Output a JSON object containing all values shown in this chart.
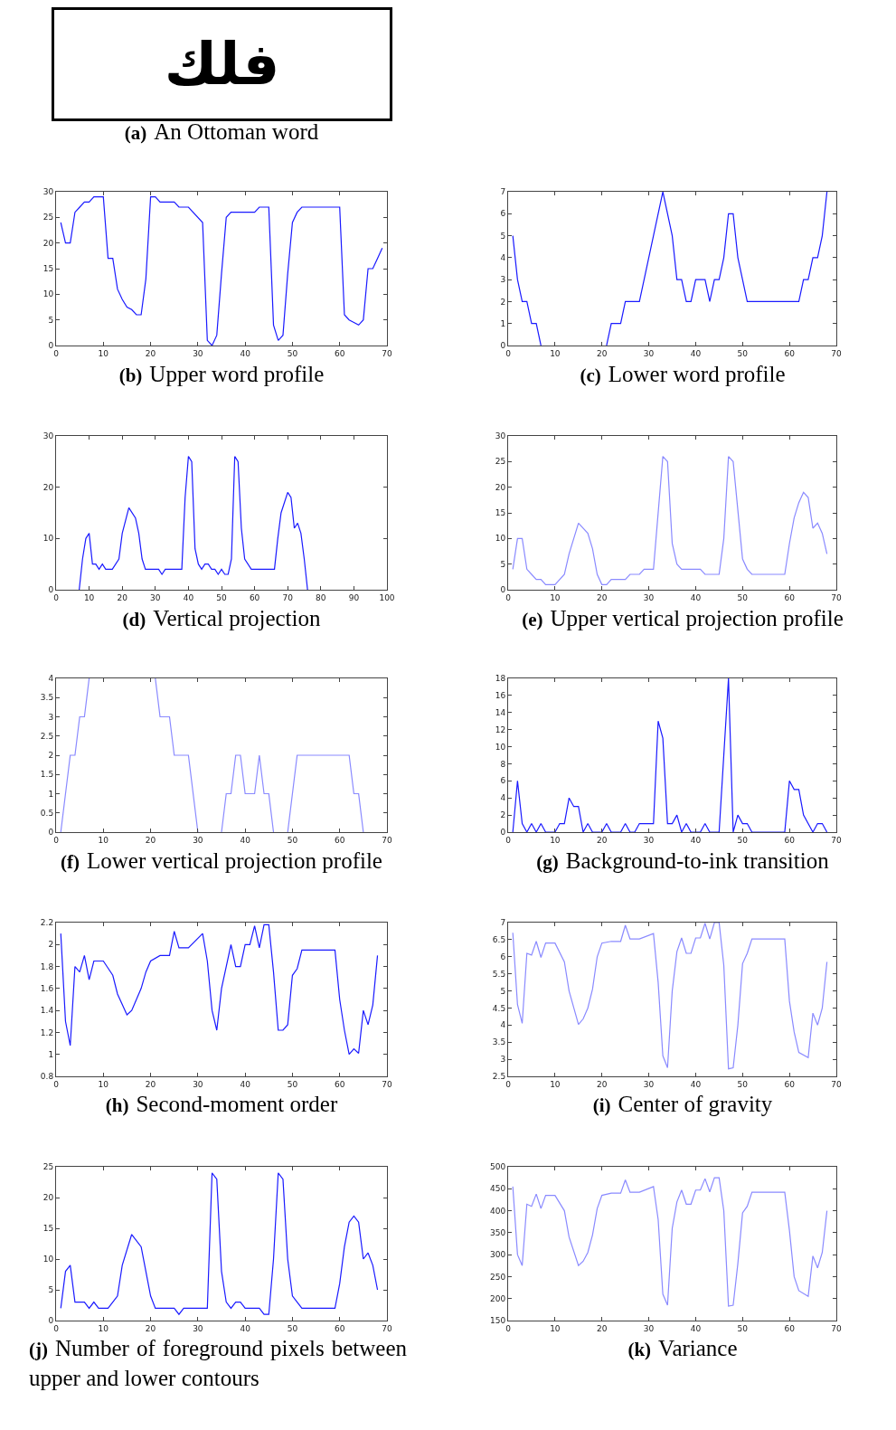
{
  "chart_data": [
    {
      "type": "other",
      "title": "(a) An Ottoman word",
      "annotations": [
        "فلك"
      ]
    },
    {
      "type": "line",
      "title": "(b) Upper word profile",
      "xlim": [
        0,
        70
      ],
      "xticks": [
        0,
        10,
        20,
        30,
        40,
        50,
        60,
        70
      ],
      "ylim": [
        0,
        30
      ],
      "yticks": [
        0,
        5,
        10,
        15,
        20,
        25,
        30
      ],
      "series": [
        {
          "color": "#1a1aff",
          "x": [
            1,
            2,
            3,
            4,
            5,
            6,
            7,
            8,
            10,
            11,
            12,
            13,
            14,
            15,
            16,
            17,
            18,
            19,
            20,
            21,
            22,
            25,
            26,
            28,
            31,
            32,
            33,
            34,
            35,
            36,
            37,
            42,
            43,
            45,
            46,
            47,
            48,
            49,
            50,
            51,
            52,
            60,
            61,
            62,
            63,
            64,
            65,
            66,
            67,
            68,
            69
          ],
          "values": [
            24,
            20,
            20,
            26,
            27,
            28,
            28,
            29,
            29,
            17,
            17,
            11,
            9,
            7.5,
            7,
            6,
            6,
            13,
            29,
            29,
            28,
            28,
            27,
            27,
            24,
            1,
            0,
            2,
            14,
            25,
            26,
            26,
            27,
            27,
            4,
            1,
            2,
            14,
            24,
            26,
            27,
            27,
            6,
            5,
            4.5,
            4,
            5,
            15,
            15,
            17,
            19
          ]
        }
      ]
    },
    {
      "type": "line",
      "title": "(c) Lower word profile",
      "xlim": [
        0,
        70
      ],
      "xticks": [
        0,
        10,
        20,
        30,
        40,
        50,
        60,
        70
      ],
      "ylim": [
        0,
        7
      ],
      "yticks": [
        0,
        1,
        2,
        3,
        4,
        5,
        6,
        7
      ],
      "series": [
        {
          "color": "#1a1aff",
          "x": [
            1,
            2,
            3,
            4,
            5,
            6,
            7,
            14,
            21,
            22,
            24,
            25,
            28,
            33,
            35,
            36,
            37,
            38,
            39,
            40,
            42,
            43,
            44,
            45,
            46,
            47,
            48,
            49,
            51,
            62,
            63,
            64,
            65,
            66,
            67,
            68
          ],
          "values": [
            5,
            3,
            2,
            2,
            1,
            1,
            0,
            null,
            0,
            1,
            1,
            2,
            2,
            7,
            5,
            3,
            3,
            2,
            2,
            3,
            3,
            2,
            3,
            3,
            4,
            6,
            6,
            4,
            2,
            2,
            3,
            3,
            4,
            4,
            5,
            7
          ]
        }
      ]
    },
    {
      "type": "line",
      "title": "(d) Vertical projection",
      "xlim": [
        0,
        100
      ],
      "xticks": [
        0,
        10,
        20,
        30,
        40,
        50,
        60,
        70,
        80,
        90,
        100
      ],
      "ylim": [
        0,
        30
      ],
      "yticks": [
        0,
        10,
        20,
        30
      ],
      "series": [
        {
          "color": "#1a1aff",
          "x": [
            7,
            8,
            9,
            10,
            11,
            12,
            13,
            14,
            15,
            17,
            19,
            20,
            22,
            24,
            25,
            26,
            27,
            31,
            32,
            33,
            38,
            39,
            40,
            41,
            42,
            43,
            44,
            45,
            46,
            47,
            48,
            49,
            50,
            51,
            52,
            53,
            54,
            55,
            56,
            57,
            59,
            66,
            67,
            68,
            70,
            71,
            72,
            73,
            74,
            75,
            76
          ],
          "values": [
            0,
            6,
            10,
            11,
            5,
            5,
            4,
            5,
            4,
            4,
            6,
            11,
            16,
            14,
            11,
            6,
            4,
            4,
            3,
            4,
            4,
            18,
            26,
            25,
            8,
            5,
            4,
            5,
            5,
            4,
            4,
            3,
            4,
            3,
            3,
            6,
            26,
            25,
            12,
            6,
            4,
            4,
            10,
            15,
            19,
            18,
            12,
            13,
            11,
            6,
            0
          ]
        }
      ]
    },
    {
      "type": "line",
      "title": "(e) Upper vertical projection profile",
      "xlim": [
        0,
        70
      ],
      "xticks": [
        0,
        10,
        20,
        30,
        40,
        50,
        60,
        70
      ],
      "ylim": [
        0,
        30
      ],
      "yticks": [
        0,
        5,
        10,
        15,
        20,
        25,
        30
      ],
      "series": [
        {
          "color": "#8a8aff",
          "x": [
            1,
            2,
            3,
            4,
            5,
            6,
            7,
            8,
            10,
            12,
            13,
            15,
            17,
            18,
            19,
            20,
            21,
            22,
            25,
            26,
            28,
            29,
            31,
            33,
            34,
            35,
            36,
            37,
            41,
            42,
            45,
            46,
            47,
            48,
            50,
            51,
            52,
            59,
            60,
            61,
            62,
            63,
            64,
            65,
            66,
            67,
            68
          ],
          "values": [
            4,
            10,
            10,
            4,
            3,
            2,
            2,
            1,
            1,
            3,
            7,
            13,
            11,
            8,
            3,
            1,
            1,
            2,
            2,
            3,
            3,
            4,
            4,
            26,
            25,
            9,
            5,
            4,
            4,
            3,
            3,
            10,
            26,
            25,
            6,
            4,
            3,
            3,
            9,
            14,
            17,
            19,
            18,
            12,
            13,
            11,
            7
          ]
        }
      ]
    },
    {
      "type": "line",
      "title": "(f) Lower vertical projection profile",
      "xlim": [
        0,
        70
      ],
      "xticks": [
        0,
        10,
        20,
        30,
        40,
        50,
        60,
        70
      ],
      "ylim": [
        0,
        4
      ],
      "yticks": [
        0,
        0.5,
        1,
        1.5,
        2,
        2.5,
        3,
        3.5,
        4
      ],
      "series": [
        {
          "color": "#8a8aff",
          "x": [
            1,
            3,
            4,
            5,
            6,
            7,
            14,
            21,
            22,
            24,
            25,
            28,
            30,
            32,
            35,
            36,
            37,
            38,
            39,
            40,
            42,
            43,
            44,
            45,
            46,
            47,
            49,
            51,
            62,
            63,
            64,
            65
          ],
          "values": [
            0,
            2,
            2,
            3,
            3,
            4,
            null,
            4,
            3,
            3,
            2,
            2,
            0,
            null,
            0,
            1,
            1,
            2,
            2,
            1,
            1,
            2,
            1,
            1,
            0,
            null,
            0,
            2,
            2,
            1,
            1,
            0
          ]
        }
      ]
    },
    {
      "type": "line",
      "title": "(g) Background-to-ink transition",
      "xlim": [
        0,
        70
      ],
      "xticks": [
        0,
        10,
        20,
        30,
        40,
        50,
        60,
        70
      ],
      "ylim": [
        0,
        18
      ],
      "yticks": [
        0,
        2,
        4,
        6,
        8,
        10,
        12,
        14,
        16,
        18
      ],
      "series": [
        {
          "color": "#1a1aff",
          "x": [
            1,
            2,
            3,
            4,
            5,
            6,
            7,
            8,
            10,
            11,
            12,
            13,
            14,
            15,
            16,
            17,
            18,
            20,
            21,
            22,
            24,
            25,
            26,
            27,
            28,
            31,
            32,
            33,
            34,
            35,
            36,
            37,
            38,
            39,
            41,
            42,
            43,
            45,
            46,
            47,
            48,
            49,
            50,
            51,
            52,
            59,
            60,
            61,
            62,
            63,
            65,
            66,
            67,
            68
          ],
          "values": [
            0,
            6,
            1,
            0,
            1,
            0,
            1,
            0,
            0,
            1,
            1,
            4,
            3,
            3,
            0,
            1,
            0,
            0,
            1,
            0,
            0,
            1,
            0,
            0,
            1,
            1,
            13,
            11,
            1,
            1,
            2,
            0,
            1,
            0,
            0,
            1,
            0,
            0,
            9,
            18,
            0,
            2,
            1,
            1,
            0,
            0,
            6,
            5,
            5,
            2,
            0,
            1,
            1,
            0
          ]
        }
      ]
    },
    {
      "type": "line",
      "title": "(h) Second-moment order",
      "xlim": [
        0,
        70
      ],
      "xticks": [
        0,
        10,
        20,
        30,
        40,
        50,
        60,
        70
      ],
      "ylim": [
        0.8,
        2.2
      ],
      "yticks": [
        0.8,
        1,
        1.2,
        1.4,
        1.6,
        1.8,
        2,
        2.2
      ],
      "series": [
        {
          "color": "#1a1aff",
          "x": [
            1,
            2,
            3,
            4,
            5,
            6,
            7,
            8,
            10,
            12,
            13,
            15,
            16,
            18,
            19,
            20,
            22,
            24,
            25,
            26,
            28,
            31,
            32,
            33,
            34,
            35,
            37,
            38,
            39,
            40,
            41,
            42,
            43,
            44,
            45,
            46,
            47,
            48,
            49,
            50,
            51,
            52,
            59,
            60,
            61,
            62,
            63,
            64,
            65,
            66,
            67,
            68
          ],
          "values": [
            2.1,
            1.3,
            1.08,
            1.8,
            1.75,
            1.9,
            1.68,
            1.85,
            1.85,
            1.72,
            1.55,
            1.36,
            1.4,
            1.6,
            1.75,
            1.85,
            1.9,
            1.9,
            2.12,
            1.97,
            1.97,
            2.1,
            1.85,
            1.4,
            1.22,
            1.6,
            2,
            1.8,
            1.8,
            2,
            2,
            2.17,
            1.97,
            2.18,
            2.18,
            1.75,
            1.22,
            1.22,
            1.27,
            1.72,
            1.78,
            1.95,
            1.95,
            1.5,
            1.22,
            1,
            1.05,
            1.01,
            1.4,
            1.27,
            1.45,
            1.9
          ]
        }
      ]
    },
    {
      "type": "line",
      "title": "(i) Center of gravity",
      "xlim": [
        0,
        70
      ],
      "xticks": [
        0,
        10,
        20,
        30,
        40,
        50,
        60,
        70
      ],
      "ylim": [
        2.5,
        7
      ],
      "yticks": [
        2.5,
        3,
        3.5,
        4,
        4.5,
        5,
        5.5,
        6,
        6.5,
        7
      ],
      "series": [
        {
          "color": "#8a8aff",
          "x": [
            1,
            2,
            3,
            4,
            5,
            6,
            7,
            8,
            10,
            12,
            13,
            15,
            16,
            17,
            18,
            19,
            20,
            22,
            24,
            25,
            26,
            28,
            31,
            32,
            33,
            34,
            35,
            36,
            37,
            38,
            39,
            40,
            41,
            42,
            43,
            44,
            45,
            46,
            47,
            48,
            49,
            50,
            51,
            52,
            59,
            60,
            61,
            62,
            64,
            65,
            66,
            67,
            68
          ],
          "values": [
            6.7,
            4.6,
            4.05,
            6.1,
            6.05,
            6.45,
            5.98,
            6.4,
            6.4,
            5.85,
            5,
            4.02,
            4.18,
            4.5,
            5.05,
            6,
            6.4,
            6.45,
            6.45,
            6.92,
            6.52,
            6.52,
            6.68,
            5.25,
            3.1,
            2.75,
            5,
            6.15,
            6.55,
            6.1,
            6.1,
            6.55,
            6.55,
            6.98,
            6.52,
            7,
            7,
            5.75,
            2.72,
            2.75,
            4,
            5.8,
            6.1,
            6.52,
            6.52,
            4.7,
            3.8,
            3.2,
            3.05,
            4.35,
            4,
            4.5,
            5.85
          ]
        }
      ]
    },
    {
      "type": "line",
      "title": "(j) Number of foreground pixels between upper and lower contours",
      "xlim": [
        0,
        70
      ],
      "xticks": [
        0,
        10,
        20,
        30,
        40,
        50,
        60,
        70
      ],
      "ylim": [
        0,
        25
      ],
      "yticks": [
        0,
        5,
        10,
        15,
        20,
        25
      ],
      "series": [
        {
          "color": "#1a1aff",
          "x": [
            1,
            2,
            3,
            4,
            5,
            6,
            7,
            8,
            9,
            11,
            12,
            13,
            14,
            16,
            18,
            19,
            20,
            21,
            25,
            26,
            27,
            32,
            33,
            34,
            35,
            36,
            37,
            38,
            39,
            40,
            41,
            43,
            44,
            45,
            46,
            47,
            48,
            49,
            50,
            51,
            52,
            59,
            60,
            61,
            62,
            63,
            64,
            65,
            66,
            67,
            68
          ],
          "values": [
            2,
            8,
            9,
            3,
            3,
            3,
            2,
            3,
            2,
            2,
            3,
            4,
            9,
            14,
            12,
            8,
            4,
            2,
            2,
            1,
            2,
            2,
            24,
            23,
            8,
            3,
            2,
            3,
            3,
            2,
            2,
            2,
            1,
            1,
            10,
            24,
            23,
            10,
            4,
            3,
            2,
            2,
            6,
            12,
            16,
            17,
            16,
            10,
            11,
            9,
            5
          ]
        }
      ]
    },
    {
      "type": "line",
      "title": "(k) Variance",
      "xlim": [
        0,
        70
      ],
      "xticks": [
        0,
        10,
        20,
        30,
        40,
        50,
        60,
        70
      ],
      "ylim": [
        150,
        500
      ],
      "yticks": [
        150,
        200,
        250,
        300,
        350,
        400,
        450,
        500
      ],
      "series": [
        {
          "color": "#8a8aff",
          "x": [
            1,
            2,
            3,
            4,
            5,
            6,
            7,
            8,
            10,
            12,
            13,
            15,
            16,
            17,
            18,
            19,
            20,
            22,
            24,
            25,
            26,
            28,
            31,
            32,
            33,
            34,
            35,
            36,
            37,
            38,
            39,
            40,
            41,
            42,
            43,
            44,
            45,
            46,
            47,
            48,
            49,
            50,
            51,
            52,
            59,
            60,
            61,
            62,
            64,
            65,
            66,
            67,
            68
          ],
          "values": [
            455,
            300,
            275,
            415,
            410,
            438,
            405,
            435,
            435,
            400,
            340,
            275,
            285,
            305,
            345,
            405,
            435,
            440,
            440,
            470,
            442,
            442,
            455,
            380,
            210,
            185,
            360,
            420,
            447,
            415,
            415,
            447,
            447,
            473,
            443,
            475,
            475,
            400,
            183,
            185,
            280,
            395,
            410,
            442,
            442,
            355,
            250,
            218,
            205,
            297,
            270,
            305,
            400
          ]
        }
      ]
    }
  ]
}
